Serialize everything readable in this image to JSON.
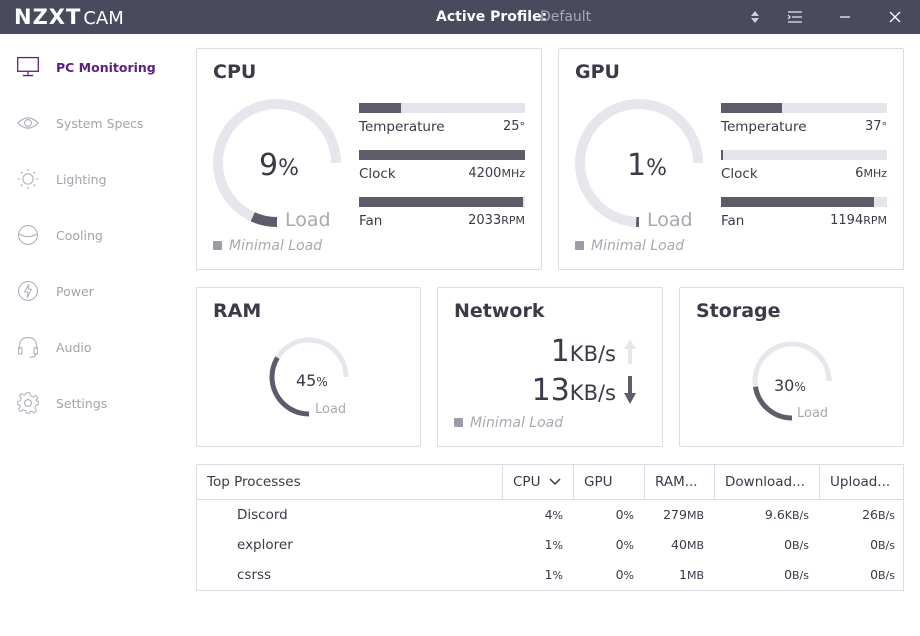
{
  "app": {
    "logo_main": "NZXT",
    "logo_sub": "CAM",
    "profile_label": "Active Profile:",
    "profile_value": "Default"
  },
  "sidebar": {
    "items": [
      {
        "label": "PC Monitoring",
        "icon": "monitor-icon",
        "active": true
      },
      {
        "label": "System Specs",
        "icon": "eye-icon"
      },
      {
        "label": "Lighting",
        "icon": "sun-icon"
      },
      {
        "label": "Cooling",
        "icon": "fan-icon"
      },
      {
        "label": "Power",
        "icon": "power-bolt-icon"
      },
      {
        "label": "Audio",
        "icon": "headset-icon"
      },
      {
        "label": "Settings",
        "icon": "gear-icon"
      }
    ]
  },
  "cpu": {
    "title": "CPU",
    "load_value": "9",
    "load_unit": "%",
    "load_fraction": 0.09,
    "load_label": "Load",
    "status": "Minimal Load",
    "temp_label": "Temperature",
    "temp_value": "25",
    "temp_unit": "°",
    "temp_fraction": 0.25,
    "clock_label": "Clock",
    "clock_value": "4200",
    "clock_unit": "MHz",
    "clock_fraction": 1.0,
    "fan_label": "Fan",
    "fan_value": "2033",
    "fan_unit": "RPM",
    "fan_fraction": 0.99
  },
  "gpu": {
    "title": "GPU",
    "load_value": "1",
    "load_unit": "%",
    "load_fraction": 0.01,
    "load_label": "Load",
    "status": "Minimal Load",
    "temp_label": "Temperature",
    "temp_value": "37",
    "temp_unit": "°",
    "temp_fraction": 0.37,
    "clock_label": "Clock",
    "clock_value": "6",
    "clock_unit": "MHz",
    "clock_fraction": 0.005,
    "fan_label": "Fan",
    "fan_value": "1194",
    "fan_unit": "RPM",
    "fan_fraction": 0.92
  },
  "ram": {
    "title": "RAM",
    "load_value": "45",
    "load_unit": "%",
    "load_fraction": 0.45,
    "load_label": "Load"
  },
  "network": {
    "title": "Network",
    "up_value": "1",
    "up_unit": "KB/s",
    "down_value": "13",
    "down_unit": "KB/s",
    "status": "Minimal Load"
  },
  "storage": {
    "title": "Storage",
    "load_value": "30",
    "load_unit": "%",
    "load_fraction": 0.3,
    "load_label": "Load"
  },
  "processes": {
    "headers": [
      "Top Processes",
      "CPU",
      "GPU",
      "RAM...",
      "Download...",
      "Upload..."
    ],
    "rows": [
      {
        "name": "Discord",
        "cpu": "4",
        "cpu_u": "%",
        "gpu": "0",
        "gpu_u": "%",
        "ram": "279",
        "ram_u": "MB",
        "dl": "9.6",
        "dl_u": "KB/s",
        "ul": "26",
        "ul_u": "B/s"
      },
      {
        "name": "explorer",
        "cpu": "1",
        "cpu_u": "%",
        "gpu": "0",
        "gpu_u": "%",
        "ram": "40",
        "ram_u": "MB",
        "dl": "0",
        "dl_u": "B/s",
        "ul": "0",
        "ul_u": "B/s"
      },
      {
        "name": "csrss",
        "cpu": "1",
        "cpu_u": "%",
        "gpu": "0",
        "gpu_u": "%",
        "ram": "1",
        "ram_u": "MB",
        "dl": "0",
        "dl_u": "B/s",
        "ul": "0",
        "ul_u": "B/s"
      }
    ]
  },
  "colors": {
    "titlebar": "#4a4a5e",
    "accent": "#5c1e86",
    "bar_fill": "#5f5b6b",
    "track": "#e4e4ea"
  }
}
